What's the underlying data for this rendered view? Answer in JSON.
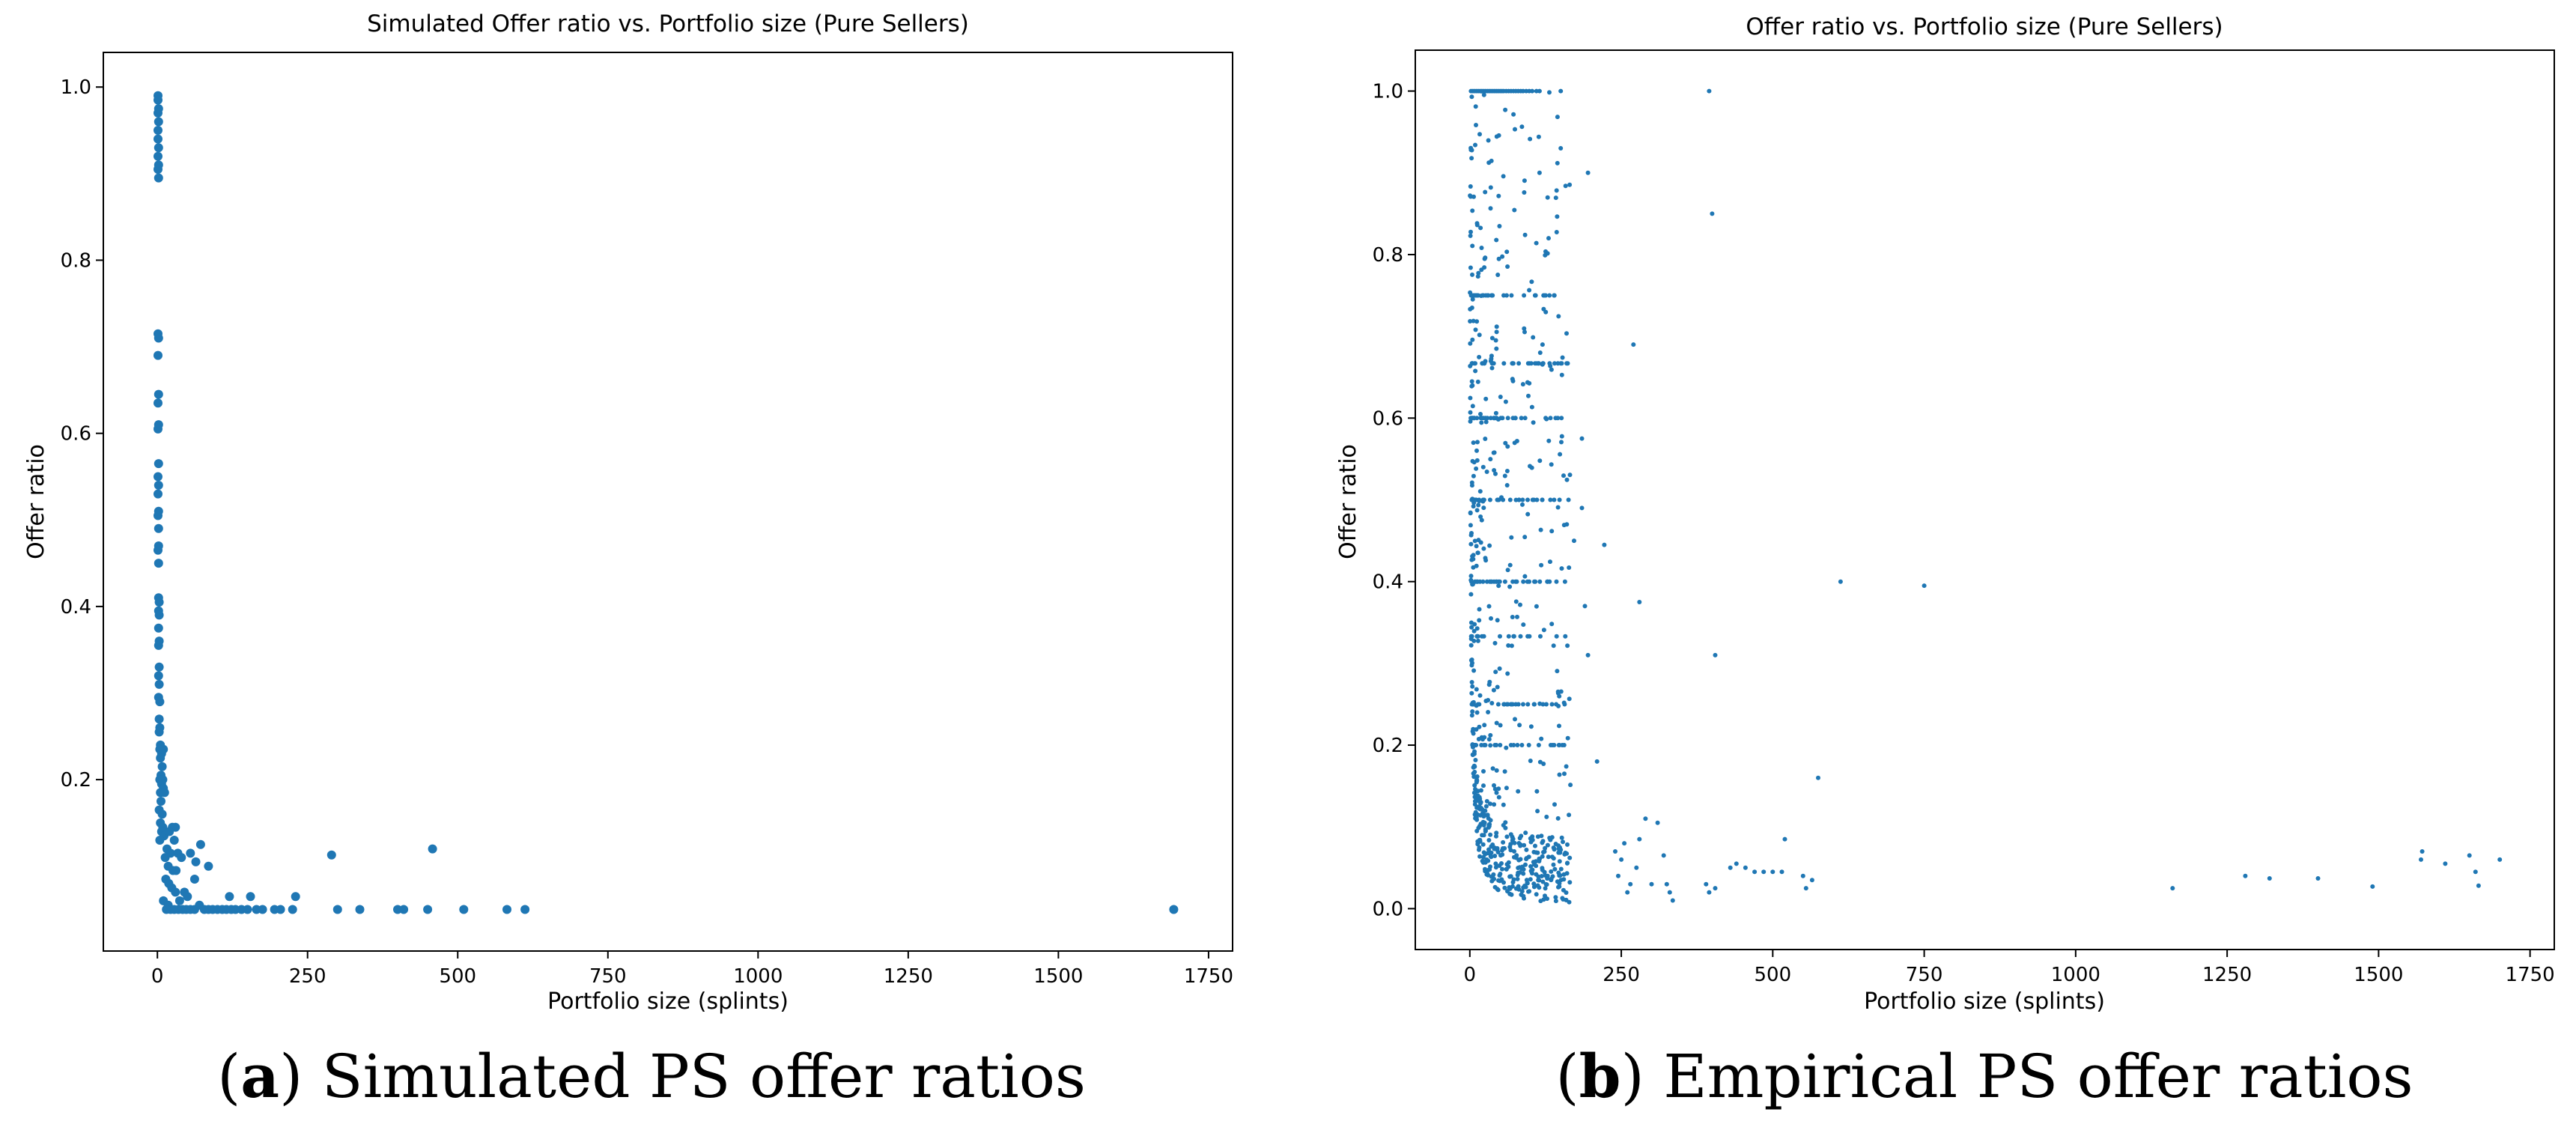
{
  "chart_data": [
    {
      "type": "scatter",
      "title": "Simulated Offer ratio vs. Portfolio size (Pure Sellers)",
      "xlabel": "Portfolio size (splints)",
      "ylabel": "Offer ratio",
      "xlim": [
        -90,
        1790
      ],
      "ylim": [
        0.002,
        1.04
      ],
      "xticks": [
        0,
        250,
        500,
        750,
        1000,
        1250,
        1500,
        1750
      ],
      "yticks": [
        0.2,
        0.4,
        0.6,
        0.8,
        1.0
      ],
      "ytick_labels": [
        "0.2",
        "0.4",
        "0.6",
        "0.8",
        "1.0"
      ],
      "marker_size": 6,
      "color": "#1f77b4",
      "points": [
        [
          1,
          0.99
        ],
        [
          1,
          0.985
        ],
        [
          2,
          0.975
        ],
        [
          1,
          0.97
        ],
        [
          2,
          0.96
        ],
        [
          1,
          0.95
        ],
        [
          1,
          0.94
        ],
        [
          2,
          0.93
        ],
        [
          1,
          0.92
        ],
        [
          2,
          0.91
        ],
        [
          1,
          0.905
        ],
        [
          2,
          0.895
        ],
        [
          1,
          0.715
        ],
        [
          2,
          0.71
        ],
        [
          1,
          0.69
        ],
        [
          2,
          0.645
        ],
        [
          1,
          0.635
        ],
        [
          2,
          0.61
        ],
        [
          1,
          0.605
        ],
        [
          2,
          0.565
        ],
        [
          1,
          0.55
        ],
        [
          2,
          0.54
        ],
        [
          1,
          0.53
        ],
        [
          2,
          0.51
        ],
        [
          1,
          0.505
        ],
        [
          2,
          0.49
        ],
        [
          2,
          0.47
        ],
        [
          1,
          0.465
        ],
        [
          2,
          0.45
        ],
        [
          2,
          0.41
        ],
        [
          3,
          0.405
        ],
        [
          2,
          0.395
        ],
        [
          3,
          0.39
        ],
        [
          2,
          0.375
        ],
        [
          3,
          0.36
        ],
        [
          2,
          0.355
        ],
        [
          3,
          0.33
        ],
        [
          2,
          0.32
        ],
        [
          3,
          0.31
        ],
        [
          2,
          0.295
        ],
        [
          4,
          0.29
        ],
        [
          3,
          0.27
        ],
        [
          4,
          0.26
        ],
        [
          3,
          0.255
        ],
        [
          5,
          0.24
        ],
        [
          4,
          0.235
        ],
        [
          7,
          0.23
        ],
        [
          10,
          0.235
        ],
        [
          5,
          0.225
        ],
        [
          8,
          0.215
        ],
        [
          6,
          0.205
        ],
        [
          4,
          0.2
        ],
        [
          9,
          0.2
        ],
        [
          7,
          0.195
        ],
        [
          10,
          0.19
        ],
        [
          5,
          0.185
        ],
        [
          12,
          0.185
        ],
        [
          6,
          0.175
        ],
        [
          3,
          0.165
        ],
        [
          8,
          0.16
        ],
        [
          5,
          0.15
        ],
        [
          9,
          0.145
        ],
        [
          7,
          0.14
        ],
        [
          11,
          0.135
        ],
        [
          4,
          0.13
        ],
        [
          25,
          0.145
        ],
        [
          30,
          0.145
        ],
        [
          20,
          0.14
        ],
        [
          28,
          0.13
        ],
        [
          16,
          0.12
        ],
        [
          22,
          0.115
        ],
        [
          34,
          0.115
        ],
        [
          13,
          0.11
        ],
        [
          40,
          0.11
        ],
        [
          18,
          0.1
        ],
        [
          26,
          0.095
        ],
        [
          31,
          0.095
        ],
        [
          14,
          0.085
        ],
        [
          19,
          0.08
        ],
        [
          24,
          0.075
        ],
        [
          30,
          0.07
        ],
        [
          37,
          0.06
        ],
        [
          55,
          0.115
        ],
        [
          72,
          0.125
        ],
        [
          64,
          0.105
        ],
        [
          85,
          0.1
        ],
        [
          62,
          0.085
        ],
        [
          45,
          0.07
        ],
        [
          50,
          0.065
        ],
        [
          120,
          0.065
        ],
        [
          155,
          0.065
        ],
        [
          230,
          0.065
        ],
        [
          290,
          0.113
        ],
        [
          458,
          0.12
        ],
        [
          10,
          0.06
        ],
        [
          18,
          0.055
        ],
        [
          22,
          0.05
        ],
        [
          15,
          0.05
        ],
        [
          28,
          0.05
        ],
        [
          35,
          0.05
        ],
        [
          42,
          0.05
        ],
        [
          48,
          0.05
        ],
        [
          55,
          0.05
        ],
        [
          62,
          0.05
        ],
        [
          70,
          0.055
        ],
        [
          78,
          0.05
        ],
        [
          85,
          0.05
        ],
        [
          92,
          0.05
        ],
        [
          100,
          0.05
        ],
        [
          108,
          0.05
        ],
        [
          115,
          0.05
        ],
        [
          123,
          0.05
        ],
        [
          130,
          0.05
        ],
        [
          140,
          0.05
        ],
        [
          150,
          0.05
        ],
        [
          165,
          0.05
        ],
        [
          175,
          0.05
        ],
        [
          195,
          0.05
        ],
        [
          205,
          0.05
        ],
        [
          225,
          0.05
        ],
        [
          300,
          0.05
        ],
        [
          337,
          0.05
        ],
        [
          400,
          0.05
        ],
        [
          410,
          0.05
        ],
        [
          450,
          0.05
        ],
        [
          510,
          0.05
        ],
        [
          582,
          0.05
        ],
        [
          612,
          0.05
        ],
        [
          1692,
          0.05
        ]
      ]
    },
    {
      "type": "scatter",
      "title": "Offer ratio vs. Portfolio size (Pure Sellers)",
      "xlabel": "Portfolio size (splints)",
      "ylabel": "Offer ratio",
      "xlim": [
        -90,
        1790
      ],
      "ylim": [
        -0.05,
        1.05
      ],
      "xticks": [
        0,
        250,
        500,
        750,
        1000,
        1250,
        1500,
        1750
      ],
      "yticks": [
        0.0,
        0.2,
        0.4,
        0.6,
        0.8,
        1.0
      ],
      "ytick_labels": [
        "0.0",
        "0.2",
        "0.4",
        "0.6",
        "0.8",
        "1.0"
      ],
      "marker_size": 3,
      "color": "#1f77b4",
      "seed": 7,
      "cloud_points": 900,
      "points": [
        [
          2,
          1.0
        ],
        [
          5,
          1.0
        ],
        [
          8,
          1.0
        ],
        [
          11,
          1.0
        ],
        [
          14,
          1.0
        ],
        [
          17,
          1.0
        ],
        [
          20,
          1.0
        ],
        [
          23,
          1.0
        ],
        [
          26,
          1.0
        ],
        [
          29,
          1.0
        ],
        [
          32,
          1.0
        ],
        [
          35,
          1.0
        ],
        [
          38,
          1.0
        ],
        [
          41,
          1.0
        ],
        [
          44,
          1.0
        ],
        [
          47,
          1.0
        ],
        [
          50,
          1.0
        ],
        [
          53,
          1.0
        ],
        [
          56,
          1.0
        ],
        [
          60,
          1.0
        ],
        [
          64,
          1.0
        ],
        [
          68,
          1.0
        ],
        [
          72,
          1.0
        ],
        [
          76,
          1.0
        ],
        [
          80,
          1.0
        ],
        [
          84,
          1.0
        ],
        [
          88,
          1.0
        ],
        [
          93,
          1.0
        ],
        [
          98,
          1.0
        ],
        [
          103,
          1.0
        ],
        [
          110,
          1.0
        ],
        [
          115,
          1.0
        ],
        [
          150,
          1.0
        ],
        [
          395,
          1.0
        ],
        [
          400,
          0.85
        ],
        [
          195,
          0.9
        ],
        [
          185,
          0.575
        ],
        [
          270,
          0.69
        ],
        [
          280,
          0.375
        ],
        [
          612,
          0.4
        ],
        [
          750,
          0.395
        ],
        [
          405,
          0.31
        ],
        [
          575,
          0.16
        ],
        [
          150,
          0.93
        ],
        [
          130,
          0.82
        ],
        [
          115,
          0.9
        ],
        [
          120,
          0.69
        ],
        [
          160,
          0.47
        ],
        [
          172,
          0.45
        ],
        [
          222,
          0.445
        ],
        [
          185,
          0.49
        ],
        [
          195,
          0.31
        ],
        [
          210,
          0.18
        ],
        [
          190,
          0.37
        ],
        [
          240,
          0.07
        ],
        [
          250,
          0.06
        ],
        [
          255,
          0.08
        ],
        [
          265,
          0.03
        ],
        [
          275,
          0.05
        ],
        [
          290,
          0.11
        ],
        [
          300,
          0.03
        ],
        [
          310,
          0.105
        ],
        [
          320,
          0.065
        ],
        [
          325,
          0.03
        ],
        [
          330,
          0.02
        ],
        [
          335,
          0.01
        ],
        [
          280,
          0.085
        ],
        [
          260,
          0.02
        ],
        [
          245,
          0.04
        ],
        [
          390,
          0.03
        ],
        [
          395,
          0.02
        ],
        [
          405,
          0.025
        ],
        [
          430,
          0.05
        ],
        [
          440,
          0.055
        ],
        [
          455,
          0.05
        ],
        [
          470,
          0.045
        ],
        [
          485,
          0.045
        ],
        [
          500,
          0.045
        ],
        [
          515,
          0.045
        ],
        [
          520,
          0.085
        ],
        [
          550,
          0.04
        ],
        [
          555,
          0.025
        ],
        [
          565,
          0.035
        ],
        [
          1160,
          0.025
        ],
        [
          1280,
          0.04
        ],
        [
          1320,
          0.037
        ],
        [
          1400,
          0.037
        ],
        [
          1490,
          0.027
        ],
        [
          1570,
          0.06
        ],
        [
          1572,
          0.07
        ],
        [
          1610,
          0.055
        ],
        [
          1650,
          0.065
        ],
        [
          1660,
          0.045
        ],
        [
          1665,
          0.028
        ],
        [
          1700,
          0.06
        ]
      ]
    }
  ],
  "captions": {
    "a": {
      "letter": "a",
      "text": " Simulated PS offer ratios"
    },
    "b": {
      "letter": "b",
      "text": " Empirical PS offer ratios"
    }
  }
}
